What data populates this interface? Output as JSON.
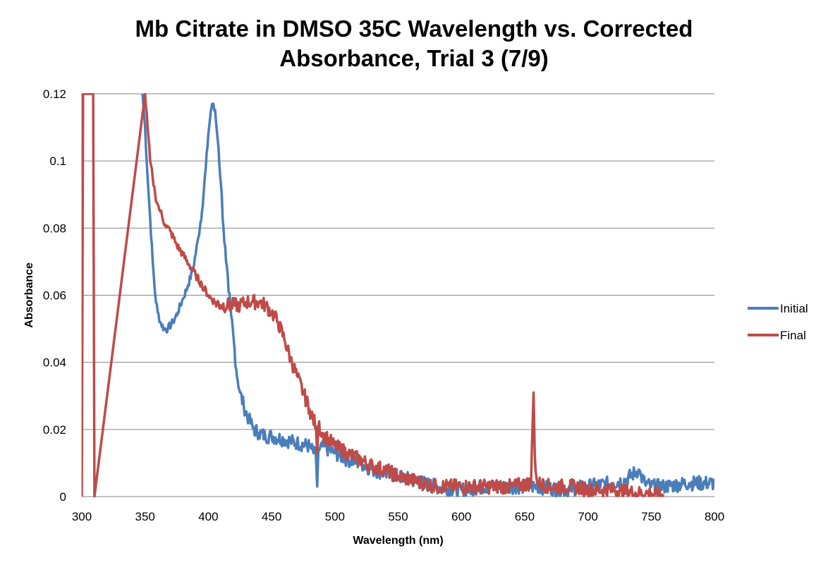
{
  "chart_data": {
    "type": "line",
    "title_lines": [
      "Mb Citrate in DMSO 35C Wavelength vs. Corrected",
      "Absorbance, Trial 3 (7/9)"
    ],
    "xlabel": "Wavelength (nm)",
    "ylabel": "Absorbance",
    "xlim": [
      300,
      800
    ],
    "ylim": [
      0,
      0.12
    ],
    "x_ticks": [
      "300",
      "350",
      "400",
      "450",
      "500",
      "550",
      "600",
      "650",
      "700",
      "750",
      "800"
    ],
    "y_ticks": [
      "0",
      "0.02",
      "0.04",
      "0.06",
      "0.08",
      "0.1",
      "0.12"
    ],
    "grid": "horizontal",
    "legend_position": "right",
    "series": [
      {
        "name": "Initial",
        "color": "#4a7ebb",
        "x": [
          348,
          350,
          352,
          354,
          356,
          358,
          360,
          362,
          365,
          368,
          372,
          376,
          380,
          384,
          388,
          392,
          395,
          398,
          400,
          402,
          403,
          404,
          406,
          408,
          410,
          412,
          414,
          416,
          418,
          420,
          422,
          425,
          428,
          432,
          436,
          440,
          445,
          450,
          460,
          470,
          480,
          485,
          486,
          487,
          490,
          500,
          510,
          520,
          530,
          540,
          550,
          560,
          570,
          580,
          600,
          620,
          640,
          660,
          680,
          700,
          720,
          730,
          740,
          742,
          745,
          750,
          760,
          780,
          800
        ],
        "y": [
          0.12,
          0.11,
          0.095,
          0.083,
          0.07,
          0.06,
          0.055,
          0.052,
          0.05,
          0.05,
          0.052,
          0.055,
          0.059,
          0.063,
          0.068,
          0.077,
          0.085,
          0.098,
          0.108,
          0.115,
          0.117,
          0.117,
          0.112,
          0.104,
          0.093,
          0.08,
          0.07,
          0.061,
          0.054,
          0.047,
          0.038,
          0.031,
          0.027,
          0.023,
          0.02,
          0.019,
          0.018,
          0.018,
          0.017,
          0.016,
          0.015,
          0.012,
          0.003,
          0.014,
          0.015,
          0.013,
          0.011,
          0.01,
          0.008,
          0.007,
          0.006,
          0.005,
          0.004,
          0.003,
          0.002,
          0.003,
          0.003,
          0.003,
          0.002,
          0.003,
          0.004,
          0.005,
          0.008,
          0.006,
          0.004,
          0.003,
          0.003,
          0.004,
          0.004
        ]
      },
      {
        "name": "Final",
        "color": "#be4b48",
        "x": [
          300,
          301,
          309,
          310,
          350,
          352,
          354,
          356,
          358,
          360,
          362,
          366,
          370,
          375,
          380,
          385,
          390,
          395,
          400,
          405,
          410,
          415,
          420,
          425,
          430,
          435,
          440,
          445,
          450,
          455,
          460,
          465,
          470,
          475,
          480,
          485,
          486,
          487,
          490,
          495,
          500,
          510,
          520,
          530,
          540,
          550,
          560,
          570,
          580,
          590,
          600,
          620,
          640,
          655,
          657,
          658,
          660,
          670,
          680,
          690,
          700,
          720,
          740,
          750,
          760
        ],
        "y": [
          0.0,
          0.12,
          0.12,
          0.0,
          0.12,
          0.11,
          0.1,
          0.095,
          0.09,
          0.087,
          0.085,
          0.081,
          0.079,
          0.075,
          0.072,
          0.069,
          0.066,
          0.063,
          0.06,
          0.058,
          0.057,
          0.057,
          0.057,
          0.057,
          0.058,
          0.058,
          0.058,
          0.057,
          0.055,
          0.052,
          0.047,
          0.041,
          0.036,
          0.031,
          0.026,
          0.021,
          0.013,
          0.021,
          0.019,
          0.017,
          0.015,
          0.013,
          0.011,
          0.009,
          0.008,
          0.006,
          0.005,
          0.004,
          0.003,
          0.003,
          0.003,
          0.003,
          0.003,
          0.004,
          0.031,
          0.012,
          0.004,
          0.003,
          0.003,
          0.003,
          0.002,
          0.002,
          0.001,
          0.001,
          0.0
        ]
      }
    ]
  }
}
